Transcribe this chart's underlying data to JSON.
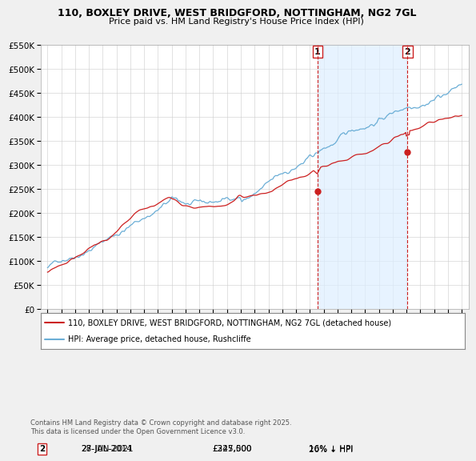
{
  "title1": "110, BOXLEY DRIVE, WEST BRIDGFORD, NOTTINGHAM, NG2 7GL",
  "title2": "Price paid vs. HM Land Registry's House Price Index (HPI)",
  "legend_line1": "110, BOXLEY DRIVE, WEST BRIDGFORD, NOTTINGHAM, NG2 7GL (detached house)",
  "legend_line2": "HPI: Average price, detached house, Rushcliffe",
  "marker1_date": "28-JUL-2014",
  "marker1_price": 245000,
  "marker1_note": "16% ↓ HPI",
  "marker2_date": "27-JAN-2021",
  "marker2_price": 327500,
  "marker2_note": "20% ↓ HPI",
  "footnote": "Contains HM Land Registry data © Crown copyright and database right 2025.\nThis data is licensed under the Open Government Licence v3.0.",
  "hpi_color": "#6baed6",
  "price_color": "#cc2020",
  "marker_vline_color": "#cc2020",
  "shade_color": "#ddeeff",
  "ylim": [
    0,
    550000
  ],
  "yticks": [
    0,
    50000,
    100000,
    150000,
    200000,
    250000,
    300000,
    350000,
    400000,
    450000,
    500000,
    550000
  ],
  "background_color": "#f0f0f0",
  "plot_bg_color": "#ffffff",
  "marker1_x": 2014.54,
  "marker2_x": 2021.08
}
